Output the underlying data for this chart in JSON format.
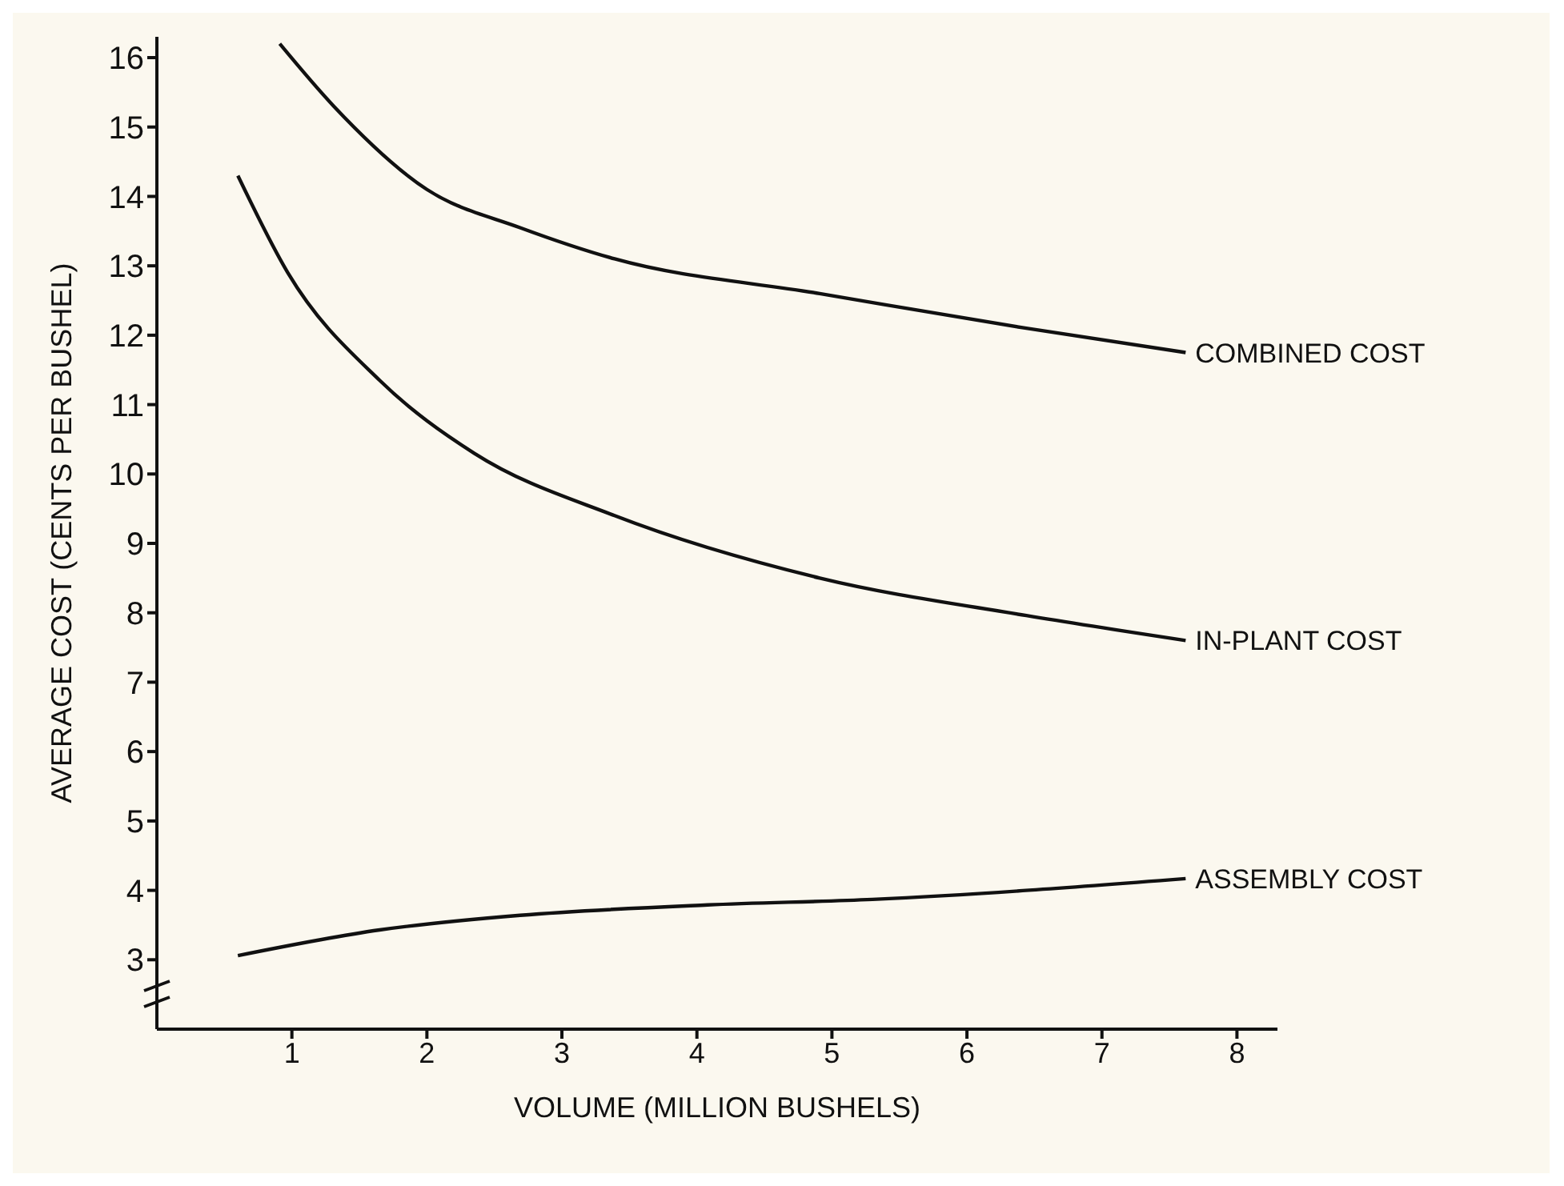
{
  "chart_data": {
    "type": "line",
    "xlabel": "VOLUME (MILLION BUSHELS)",
    "ylabel": "AVERAGE COST (CENTS PER BUSHEL)",
    "xlim": [
      0,
      8.3
    ],
    "xticks": [
      1,
      2,
      3,
      4,
      5,
      6,
      7,
      8
    ],
    "ylim": [
      2,
      16.3
    ],
    "yticks": [
      3,
      4,
      5,
      6,
      7,
      8,
      9,
      10,
      11,
      12,
      13,
      14,
      15,
      16
    ],
    "grid": false,
    "legend": false,
    "marker": "none",
    "line_style": "solid",
    "series": [
      {
        "name": "COMBINED COST",
        "color": "#111111",
        "x": [
          0.91,
          1.31,
          2.0,
          2.69,
          3.39,
          4.91,
          6.44,
          7.62
        ],
        "values": [
          16.2,
          15.3,
          14.1,
          13.55,
          13.1,
          12.6,
          12.1,
          11.75
        ]
      },
      {
        "name": "IN-PLANT COST",
        "color": "#111111",
        "x": [
          0.6,
          0.97,
          1.65,
          2.35,
          3.39,
          4.91,
          6.44,
          7.62
        ],
        "values": [
          14.3,
          12.9,
          11.35,
          10.3,
          9.4,
          8.5,
          7.96,
          7.6
        ]
      },
      {
        "name": "ASSEMBLY COST",
        "color": "#111111",
        "x": [
          0.6,
          1.65,
          2.69,
          4.08,
          5.3,
          7.62
        ],
        "values": [
          3.06,
          3.43,
          3.64,
          3.79,
          3.87,
          4.17
        ]
      }
    ]
  }
}
